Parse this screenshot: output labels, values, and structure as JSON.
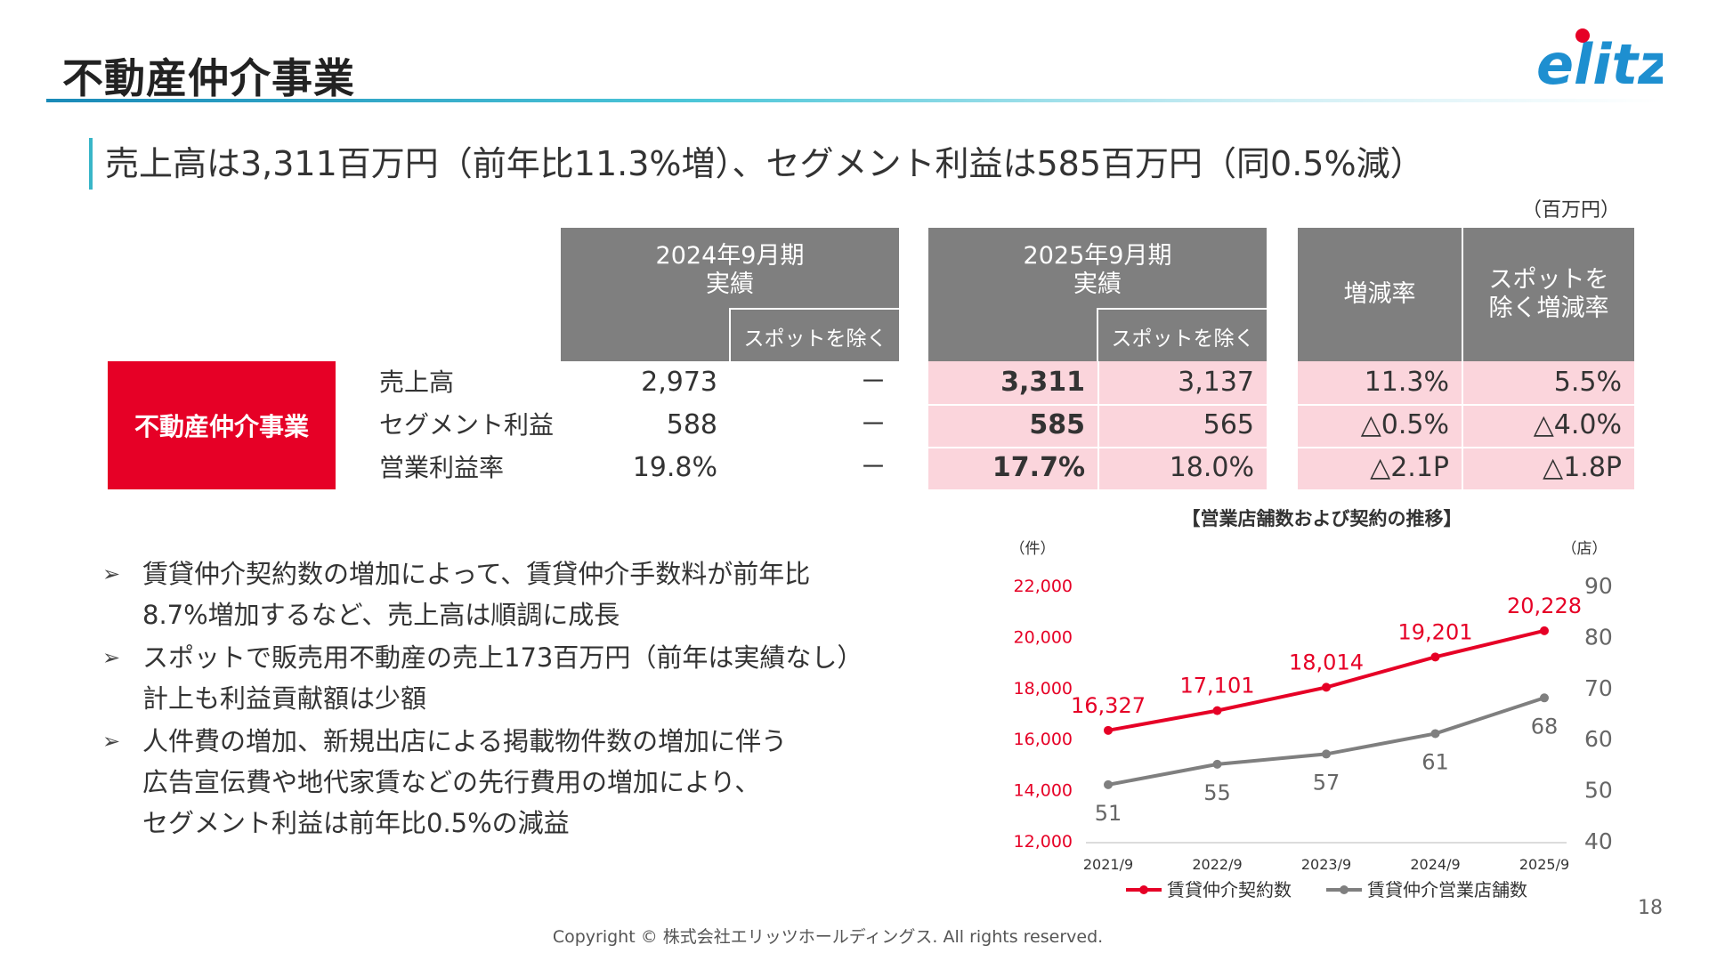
{
  "header": {
    "title": "不動産仲介事業",
    "logo_text": "elitz"
  },
  "lead": "売上高は3,311百万円（前年比11.3%増）、セグメント利益は585百万円（同0.5%減）",
  "unit": "（百万円）",
  "table": {
    "col_2024": {
      "title_line1": "2024年9月期",
      "title_line2": "実績",
      "sub": "スポットを除く"
    },
    "col_2025": {
      "title_line1": "2025年9月期",
      "title_line2": "実績",
      "sub": "スポットを除く"
    },
    "col_change": "増減率",
    "col_change_ex_line1": "スポットを",
    "col_change_ex_line2": "除く増減率",
    "segment": "不動産仲介事業",
    "rows": [
      {
        "label": "売上高",
        "v2024": "2,973",
        "v2024ex": "－",
        "v2025": "3,311",
        "v2025ex": "3,137",
        "chg": "11.3%",
        "chgex": "5.5%"
      },
      {
        "label": "セグメント利益",
        "v2024": "588",
        "v2024ex": "－",
        "v2025": "585",
        "v2025ex": "565",
        "chg": "△0.5%",
        "chgex": "△4.0%"
      },
      {
        "label": "営業利益率",
        "v2024": "19.8%",
        "v2024ex": "－",
        "v2025": "17.7%",
        "v2025ex": "18.0%",
        "chg": "△2.1P",
        "chgex": "△1.8P"
      }
    ]
  },
  "bullets": [
    {
      "line1": "賃貸仲介契約数の増加によって、賃貸仲介手数料が前年比",
      "line2": "8.7%増加するなど、売上高は順調に成長"
    },
    {
      "line1": "スポットで販売用不動産の売上173百万円（前年は実績なし）",
      "line2": "計上も利益貢献額は少額"
    },
    {
      "line1": "人件費の増加、新規出店による掲載物件数の増加に伴う",
      "line2": "広告宣伝費や地代家賃などの先行費用の増加により、",
      "line3": "セグメント利益は前年比0.5%の減益"
    }
  ],
  "chart_data": {
    "type": "line",
    "title": "【営業店舗数および契約の推移】",
    "x": [
      "2021/9",
      "2022/9",
      "2023/9",
      "2024/9",
      "2025/9"
    ],
    "left_axis": {
      "unit": "（件）",
      "ylim": [
        12000,
        22000
      ],
      "ticks": [
        "12,000",
        "14,000",
        "16,000",
        "18,000",
        "20,000",
        "22,000"
      ],
      "tick_values": [
        12000,
        14000,
        16000,
        18000,
        20000,
        22000
      ]
    },
    "right_axis": {
      "unit": "（店）",
      "ylim": [
        40,
        90
      ],
      "ticks": [
        "40",
        "50",
        "60",
        "70",
        "80",
        "90"
      ],
      "tick_values": [
        40,
        50,
        60,
        70,
        80,
        90
      ]
    },
    "series": [
      {
        "name": "賃貸仲介契約数",
        "axis": "left",
        "color": "#e60026",
        "values": [
          16327,
          17101,
          18014,
          19201,
          20228
        ],
        "labels": [
          "16,327",
          "17,101",
          "18,014",
          "19,201",
          "20,228"
        ]
      },
      {
        "name": "賃貸仲介営業店舗数",
        "axis": "right",
        "color": "#7f7f7f",
        "values": [
          51,
          55,
          57,
          61,
          68
        ],
        "labels": [
          "51",
          "55",
          "57",
          "61",
          "68"
        ]
      }
    ],
    "legend": "bottom"
  },
  "footer": {
    "page_number": "18",
    "copyright": "Copyright © 株式会社エリッツホールディングス. All rights reserved."
  },
  "colors": {
    "accent_red": "#e60026",
    "header_gray": "#7f7f7f",
    "highlight_pink": "#fbd5dc",
    "rule_teal": "#39b6c8"
  }
}
